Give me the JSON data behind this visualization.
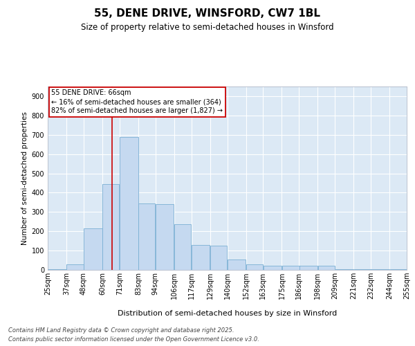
{
  "title": "55, DENE DRIVE, WINSFORD, CW7 1BL",
  "subtitle": "Size of property relative to semi-detached houses in Winsford",
  "xlabel": "Distribution of semi-detached houses by size in Winsford",
  "ylabel": "Number of semi-detached properties",
  "footnote1": "Contains HM Land Registry data © Crown copyright and database right 2025.",
  "footnote2": "Contains public sector information licensed under the Open Government Licence v3.0.",
  "annotation_title": "55 DENE DRIVE: 66sqm",
  "annotation_line1": "← 16% of semi-detached houses are smaller (364)",
  "annotation_line2": "82% of semi-detached houses are larger (1,827) →",
  "property_size": 66,
  "bar_left_edges": [
    25,
    37,
    48,
    60,
    71,
    83,
    94,
    106,
    117,
    129,
    140,
    152,
    163,
    175,
    186,
    198,
    209,
    221,
    232,
    244
  ],
  "bar_widths": [
    12,
    11,
    12,
    11,
    12,
    11,
    12,
    11,
    12,
    11,
    12,
    11,
    12,
    12,
    12,
    11,
    12,
    11,
    12,
    11
  ],
  "bar_heights": [
    5,
    30,
    215,
    445,
    690,
    345,
    340,
    235,
    130,
    125,
    55,
    30,
    20,
    20,
    20,
    20,
    5,
    3,
    2,
    2
  ],
  "bar_color": "#c5d9f0",
  "bar_edge_color": "#7aafd4",
  "vline_color": "#cc0000",
  "vline_x": 66,
  "ylim": [
    0,
    950
  ],
  "yticks": [
    0,
    100,
    200,
    300,
    400,
    500,
    600,
    700,
    800,
    900
  ],
  "tick_labels": [
    "25sqm",
    "37sqm",
    "48sqm",
    "60sqm",
    "71sqm",
    "83sqm",
    "94sqm",
    "106sqm",
    "117sqm",
    "129sqm",
    "140sqm",
    "152sqm",
    "163sqm",
    "175sqm",
    "186sqm",
    "198sqm",
    "209sqm",
    "221sqm",
    "232sqm",
    "244sqm",
    "255sqm"
  ],
  "plot_bg_color": "#dce9f5",
  "fig_bg_color": "#ffffff",
  "grid_color": "#ffffff",
  "title_fontsize": 11,
  "subtitle_fontsize": 8.5,
  "axis_label_fontsize": 8,
  "tick_fontsize": 7,
  "ylabel_fontsize": 7.5,
  "annotation_fontsize": 7,
  "annotation_box_color": "#ffffff",
  "annotation_box_edge": "#cc0000",
  "footnote_fontsize": 6
}
